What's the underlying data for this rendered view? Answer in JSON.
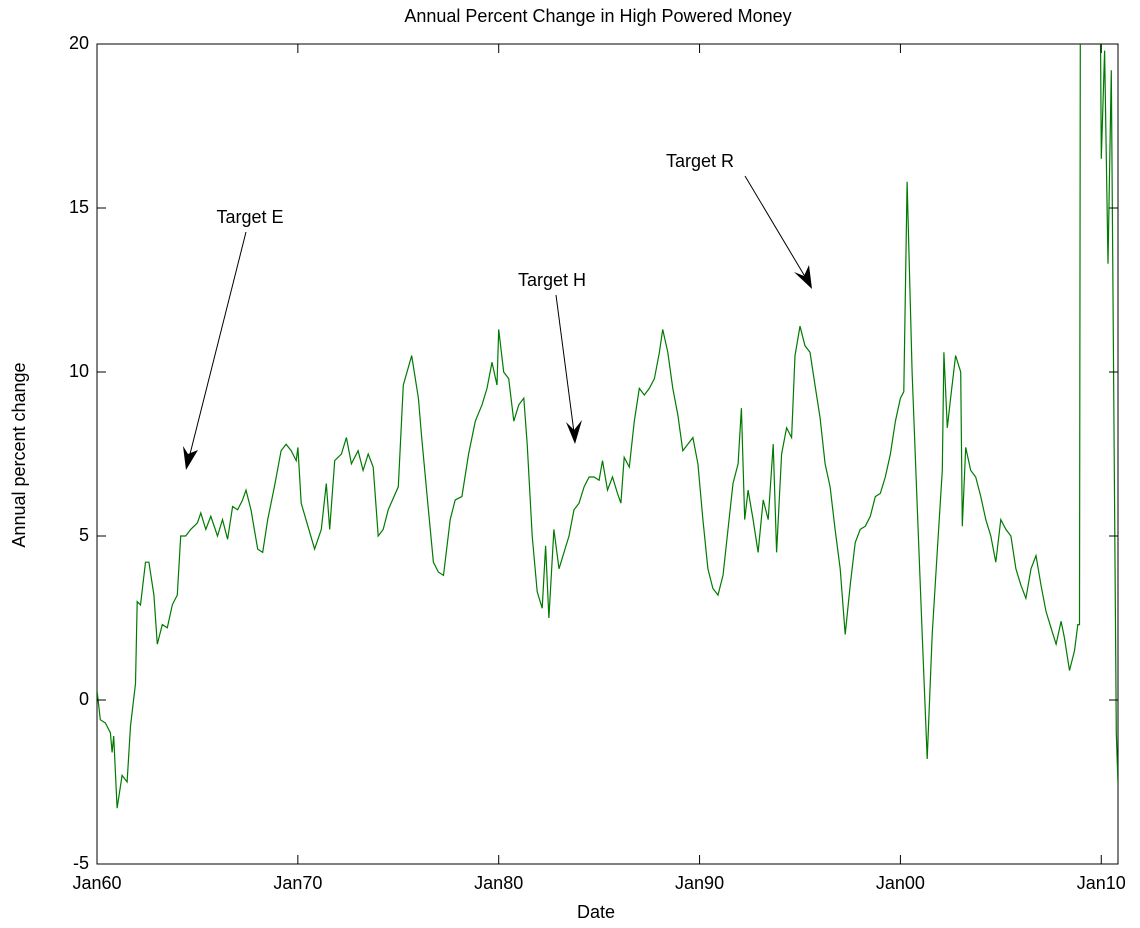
{
  "chart_data": {
    "type": "line",
    "title": "Annual Percent Change in High Powered Money",
    "xlabel": "Date",
    "ylabel": "Annual percent change",
    "xlim": [
      "1960-01",
      "2010-11"
    ],
    "xticks": [
      {
        "value": "1960-01",
        "label": "Jan60"
      },
      {
        "value": "1970-01",
        "label": "Jan70"
      },
      {
        "value": "1980-01",
        "label": "Jan80"
      },
      {
        "value": "1990-01",
        "label": "Jan90"
      },
      {
        "value": "2000-01",
        "label": "Jan00"
      },
      {
        "value": "2010-01",
        "label": "Jan10"
      }
    ],
    "ylim": [
      -5,
      20
    ],
    "yticks": [
      -5,
      0,
      5,
      10,
      15,
      20
    ],
    "grid": false,
    "annotations": [
      "Target E",
      "Target H",
      "Target R"
    ],
    "x": [
      "1960-01",
      "1960-03",
      "1960-06",
      "1960-09",
      "1960-10",
      "1960-11",
      "1961-01",
      "1961-04",
      "1961-07",
      "1961-09",
      "1961-12",
      "1962-01",
      "1962-03",
      "1962-06",
      "1962-08",
      "1962-11",
      "1963-01",
      "1963-04",
      "1963-07",
      "1963-10",
      "1964-01",
      "1964-03",
      "1964-06",
      "1964-09",
      "1965-01",
      "1965-03",
      "1965-06",
      "1965-09",
      "1966-01",
      "1966-04",
      "1966-07",
      "1966-10",
      "1967-01",
      "1967-04",
      "1967-06",
      "1967-09",
      "1968-01",
      "1968-04",
      "1968-07",
      "1968-11",
      "1969-03",
      "1969-06",
      "1969-09",
      "1969-12",
      "1970-01",
      "1970-03",
      "1970-07",
      "1970-11",
      "1971-03",
      "1971-06",
      "1971-08",
      "1971-11",
      "1972-03",
      "1972-06",
      "1972-09",
      "1973-01",
      "1973-04",
      "1973-07",
      "1973-10",
      "1974-01",
      "1974-04",
      "1974-07",
      "1975-01",
      "1975-04",
      "1975-09",
      "1976-01",
      "1976-03",
      "1976-07",
      "1976-10",
      "1977-01",
      "1977-04",
      "1977-08",
      "1977-11",
      "1978-03",
      "1978-07",
      "1978-11",
      "1979-03",
      "1979-06",
      "1979-09",
      "1979-12",
      "1980-01",
      "1980-04",
      "1980-07",
      "1980-10",
      "1981-01",
      "1981-04",
      "1981-06",
      "1981-09",
      "1981-12",
      "1982-03",
      "1982-05",
      "1982-07",
      "1982-10",
      "1983-01",
      "1983-04",
      "1983-07",
      "1983-10",
      "1984-01",
      "1984-04",
      "1984-07",
      "1984-10",
      "1985-01",
      "1985-03",
      "1985-06",
      "1985-09",
      "1985-12",
      "1986-02",
      "1986-04",
      "1986-07",
      "1986-10",
      "1987-01",
      "1987-04",
      "1987-07",
      "1987-10",
      "1988-01",
      "1988-03",
      "1988-06",
      "1988-09",
      "1988-12",
      "1989-03",
      "1989-06",
      "1989-09",
      "1989-12",
      "1990-03",
      "1990-06",
      "1990-09",
      "1990-12",
      "1991-03",
      "1991-06",
      "1991-09",
      "1991-12",
      "1992-02",
      "1992-04",
      "1992-06",
      "1992-09",
      "1992-12",
      "1993-03",
      "1993-06",
      "1993-09",
      "1993-11",
      "1994-02",
      "1994-05",
      "1994-08",
      "1994-10",
      "1995-01",
      "1995-04",
      "1995-07",
      "1995-10",
      "1996-01",
      "1996-04",
      "1996-07",
      "1996-10",
      "1997-01",
      "1997-04",
      "1997-07",
      "1997-10",
      "1998-01",
      "1998-04",
      "1998-07",
      "1998-10",
      "1999-01",
      "1999-04",
      "1999-07",
      "1999-10",
      "2000-01",
      "2000-03",
      "2000-05",
      "2000-08",
      "2000-11",
      "2001-02",
      "2001-05",
      "2001-08",
      "2001-11",
      "2002-02",
      "2002-03",
      "2002-05",
      "2002-07",
      "2002-10",
      "2003-01",
      "2003-02",
      "2003-04",
      "2003-07",
      "2003-10",
      "2004-01",
      "2004-04",
      "2004-07",
      "2004-10",
      "2005-01",
      "2005-04",
      "2005-07",
      "2005-10",
      "2006-01",
      "2006-04",
      "2006-07",
      "2006-10",
      "2007-01",
      "2007-04",
      "2007-07",
      "2007-10",
      "2008-01",
      "2008-03",
      "2008-06",
      "2008-09",
      "2008-11",
      "2008-12",
      "2009-01",
      "2009-10",
      "2010-01",
      "2010-03",
      "2010-05",
      "2010-07",
      "2010-10",
      "2010-11"
    ],
    "series": [
      {
        "name": "High Powered Money",
        "color": "#007a00",
        "values": [
          0.3,
          -0.6,
          -0.7,
          -1.0,
          -1.6,
          -1.1,
          -3.3,
          -2.3,
          -2.5,
          -0.8,
          0.5,
          3.0,
          2.9,
          4.2,
          4.2,
          3.2,
          1.7,
          2.3,
          2.2,
          2.9,
          3.2,
          5.0,
          5.0,
          5.2,
          5.4,
          5.7,
          5.2,
          5.6,
          5.0,
          5.5,
          4.9,
          5.9,
          5.8,
          6.1,
          6.4,
          5.8,
          4.6,
          4.5,
          5.5,
          6.5,
          7.6,
          7.8,
          7.6,
          7.3,
          7.7,
          6.0,
          5.3,
          4.6,
          5.2,
          6.6,
          5.2,
          7.3,
          7.5,
          8.0,
          7.2,
          7.6,
          7.0,
          7.5,
          7.1,
          5.0,
          5.2,
          5.8,
          6.5,
          9.6,
          10.5,
          9.2,
          8.0,
          5.8,
          4.2,
          3.9,
          3.8,
          5.5,
          6.1,
          6.2,
          7.5,
          8.5,
          9.0,
          9.5,
          10.3,
          9.6,
          11.3,
          10.0,
          9.8,
          8.5,
          9.0,
          9.2,
          7.8,
          5.0,
          3.3,
          2.8,
          4.7,
          2.5,
          5.2,
          4.0,
          4.5,
          5.0,
          5.8,
          6.0,
          6.5,
          6.8,
          6.8,
          6.7,
          7.3,
          6.4,
          6.8,
          6.3,
          6.0,
          7.4,
          7.1,
          8.5,
          9.5,
          9.3,
          9.5,
          9.8,
          10.6,
          11.3,
          10.6,
          9.5,
          8.7,
          7.6,
          7.8,
          8.0,
          7.2,
          5.5,
          4.0,
          3.4,
          3.2,
          3.8,
          5.2,
          6.6,
          7.2,
          8.9,
          5.5,
          6.4,
          5.5,
          4.5,
          6.1,
          5.5,
          7.8,
          4.5,
          7.5,
          8.3,
          8.0,
          10.5,
          11.4,
          10.8,
          10.6,
          9.6,
          8.6,
          7.2,
          6.5,
          5.2,
          4.0,
          2.0,
          3.5,
          4.8,
          5.2,
          5.3,
          5.6,
          6.2,
          6.3,
          6.8,
          7.5,
          8.5,
          9.2,
          9.4,
          15.8,
          10.0,
          6.0,
          2.0,
          -1.8,
          2.0,
          4.5,
          7.0,
          10.6,
          8.3,
          9.2,
          10.5,
          10.0,
          5.3,
          7.7,
          7.0,
          6.8,
          6.2,
          5.5,
          5.0,
          4.2,
          5.5,
          5.2,
          5.0,
          4.0,
          3.5,
          3.1,
          4.0,
          4.4,
          3.5,
          2.7,
          2.2,
          1.7,
          2.4,
          1.9,
          0.9,
          1.5,
          2.3,
          2.3,
          40,
          40,
          16.5,
          19.8,
          13.3,
          19.2,
          -1.0,
          -2.6
        ]
      }
    ]
  }
}
